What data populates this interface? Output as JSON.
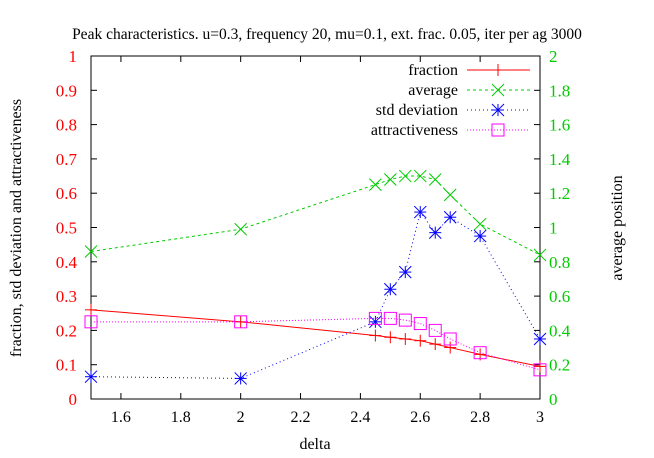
{
  "chart_data": {
    "type": "line",
    "title": "Peak characteristics. u=0.3, frequency 20, mu=0.1, ext. frac. 0.05, iter per ag 3000",
    "xlabel": "delta",
    "ylabel_left": "fraction, std deviation and attractiveness",
    "ylabel_right": "average position",
    "xlim": [
      1.5,
      3.0
    ],
    "ylim_left": [
      0,
      1
    ],
    "ylim_right": [
      0,
      2
    ],
    "x_ticks": [
      "1.6",
      "1.8",
      "2",
      "2.2",
      "2.4",
      "2.6",
      "2.8",
      "3"
    ],
    "y_ticks_left": [
      "0",
      "0.1",
      "0.2",
      "0.3",
      "0.4",
      "0.5",
      "0.6",
      "0.7",
      "0.8",
      "0.9",
      "1"
    ],
    "y_ticks_right": [
      "0",
      "0.2",
      "0.4",
      "0.6",
      "0.8",
      "1",
      "1.2",
      "1.4",
      "1.6",
      "1.8",
      "2"
    ],
    "legend_position": "top-right",
    "grid": false,
    "colors": {
      "left_axis": "#ff0000",
      "right_axis": "#00cc00"
    },
    "series": [
      {
        "name": "fraction",
        "axis": "left",
        "color": "#ff0000",
        "marker": "plus",
        "dash": "",
        "x": [
          1.5,
          2.0,
          2.45,
          2.5,
          2.55,
          2.6,
          2.65,
          2.7,
          2.8,
          3.0
        ],
        "y": [
          0.26,
          0.225,
          0.185,
          0.18,
          0.175,
          0.17,
          0.16,
          0.15,
          0.13,
          0.095
        ]
      },
      {
        "name": "average",
        "axis": "right",
        "color": "#00cc00",
        "marker": "x",
        "dash": "3,3",
        "x": [
          1.5,
          2.0,
          2.45,
          2.5,
          2.55,
          2.6,
          2.65,
          2.7,
          2.8,
          3.0
        ],
        "y": [
          0.86,
          0.99,
          1.25,
          1.28,
          1.3,
          1.3,
          1.28,
          1.19,
          1.02,
          0.84
        ]
      },
      {
        "name": "std deviation",
        "axis": "left",
        "color": "#0000ff",
        "marker": "star",
        "dash": "1,3",
        "x": [
          1.5,
          2.0,
          2.45,
          2.5,
          2.55,
          2.6,
          2.65,
          2.7,
          2.8,
          3.0
        ],
        "y": [
          0.065,
          0.06,
          0.225,
          0.32,
          0.37,
          0.545,
          0.485,
          0.53,
          0.475,
          0.175
        ]
      },
      {
        "name": "attractiveness",
        "axis": "left",
        "color": "#ff00ff",
        "marker": "square",
        "dash": "1,2",
        "x": [
          1.5,
          2.0,
          2.45,
          2.5,
          2.55,
          2.6,
          2.65,
          2.7,
          2.8,
          3.0
        ],
        "y": [
          0.225,
          0.225,
          0.235,
          0.235,
          0.23,
          0.22,
          0.2,
          0.175,
          0.135,
          0.085
        ]
      }
    ]
  }
}
